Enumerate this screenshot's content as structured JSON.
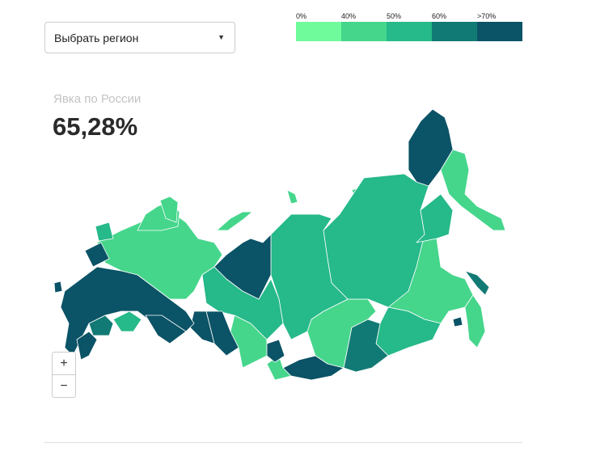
{
  "region_select": {
    "placeholder": "Выбрать регион",
    "icon": "caret-down-icon"
  },
  "legend": {
    "labels": [
      "0%",
      "40%",
      "50%",
      "60%",
      ">70%"
    ],
    "colors": [
      "#6ffb9b",
      "#45d68c",
      "#26b98a",
      "#127a74",
      "#0b5366"
    ]
  },
  "turnout": {
    "label": "Явка по России",
    "value": "65,28%"
  },
  "zoom_controls": {
    "zoom_in": "+",
    "zoom_out": "−"
  }
}
